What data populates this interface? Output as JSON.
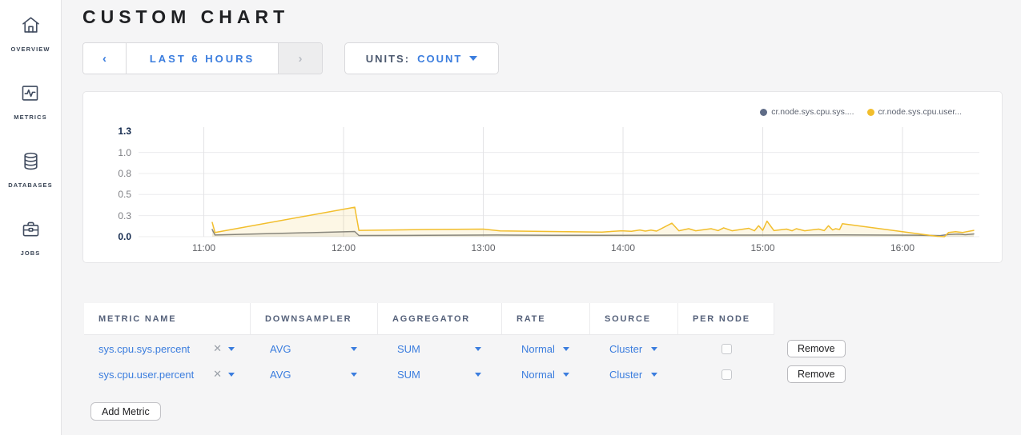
{
  "colors": {
    "accent_blue": "#3b7dde",
    "slate_text": "#55617a",
    "page_bg": "#f5f5f6",
    "panel_bg": "#ffffff",
    "series_sys": "#5f6c87",
    "series_user": "#f2be2c"
  },
  "sidebar": {
    "items": [
      {
        "label": "OVERVIEW",
        "icon": "home"
      },
      {
        "label": "METRICS",
        "icon": "metrics-graph"
      },
      {
        "label": "DATABASES",
        "icon": "database"
      },
      {
        "label": "JOBS",
        "icon": "briefcase"
      }
    ]
  },
  "header": {
    "title": "CUSTOM CHART"
  },
  "toolbar": {
    "time_range": {
      "prev_icon": "‹",
      "label": "LAST 6 HOURS",
      "next_icon": "›"
    },
    "units": {
      "label": "UNITS:",
      "value": "COUNT"
    }
  },
  "chart_data": {
    "type": "line",
    "title": "",
    "xlabel": "",
    "ylabel": "",
    "x_unit": "time of day (hours)",
    "xlim": [
      10.55,
      16.55
    ],
    "ylim": [
      0,
      1.3
    ],
    "grid": true,
    "legend_position": "top-right",
    "xticks": [
      {
        "v": 11,
        "label": "11:00"
      },
      {
        "v": 12,
        "label": "12:00"
      },
      {
        "v": 13,
        "label": "13:00"
      },
      {
        "v": 14,
        "label": "14:00"
      },
      {
        "v": 15,
        "label": "15:00"
      },
      {
        "v": 16,
        "label": "16:00"
      }
    ],
    "yticks": [
      {
        "v": 0,
        "label": "0.0",
        "bold": true,
        "line": true
      },
      {
        "v": 0.25,
        "label": "0.3",
        "bold": false,
        "line": true
      },
      {
        "v": 0.5,
        "label": "0.5",
        "bold": false,
        "line": true
      },
      {
        "v": 0.75,
        "label": "0.8",
        "bold": false,
        "line": true
      },
      {
        "v": 1.0,
        "label": "1.0",
        "bold": false,
        "line": true
      },
      {
        "v": 1.25,
        "label": "1.3",
        "bold": true,
        "line": false
      }
    ],
    "series": [
      {
        "name": "cr.node.sys.cpu.sys....",
        "color": "#5f6c87",
        "line_color": "#7a7f88",
        "fill": "rgba(120,126,138,0.10)",
        "points": [
          [
            11.06,
            0.085
          ],
          [
            11.08,
            0.02
          ],
          [
            12.08,
            0.062
          ],
          [
            12.11,
            0.014
          ],
          [
            12.6,
            0.016
          ],
          [
            13.1,
            0.02
          ],
          [
            13.5,
            0.017
          ],
          [
            14.0,
            0.017
          ],
          [
            14.5,
            0.019
          ],
          [
            15.0,
            0.019
          ],
          [
            15.57,
            0.021
          ],
          [
            16.1,
            0.018
          ],
          [
            16.27,
            0.013
          ],
          [
            16.33,
            0.026
          ],
          [
            16.4,
            0.03
          ],
          [
            16.45,
            0.024
          ],
          [
            16.51,
            0.032
          ]
        ]
      },
      {
        "name": "cr.node.sys.cpu.user...",
        "color": "#f2be2c",
        "line_color": "#f2be2c",
        "fill": "rgba(242,190,44,0.12)",
        "points": [
          [
            11.06,
            0.17
          ],
          [
            11.08,
            0.05
          ],
          [
            12.08,
            0.35
          ],
          [
            12.11,
            0.075
          ],
          [
            12.6,
            0.085
          ],
          [
            13.0,
            0.09
          ],
          [
            13.12,
            0.068
          ],
          [
            13.85,
            0.055
          ],
          [
            13.99,
            0.07
          ],
          [
            14.06,
            0.065
          ],
          [
            14.12,
            0.08
          ],
          [
            14.16,
            0.066
          ],
          [
            14.2,
            0.078
          ],
          [
            14.24,
            0.066
          ],
          [
            14.35,
            0.16
          ],
          [
            14.4,
            0.07
          ],
          [
            14.47,
            0.095
          ],
          [
            14.52,
            0.07
          ],
          [
            14.63,
            0.095
          ],
          [
            14.68,
            0.072
          ],
          [
            14.72,
            0.105
          ],
          [
            14.78,
            0.07
          ],
          [
            14.9,
            0.1
          ],
          [
            14.94,
            0.07
          ],
          [
            14.97,
            0.13
          ],
          [
            15.0,
            0.075
          ],
          [
            15.03,
            0.185
          ],
          [
            15.08,
            0.072
          ],
          [
            15.17,
            0.09
          ],
          [
            15.21,
            0.07
          ],
          [
            15.24,
            0.095
          ],
          [
            15.3,
            0.07
          ],
          [
            15.4,
            0.09
          ],
          [
            15.44,
            0.072
          ],
          [
            15.47,
            0.13
          ],
          [
            15.5,
            0.08
          ],
          [
            15.52,
            0.095
          ],
          [
            15.55,
            0.085
          ],
          [
            15.57,
            0.155
          ],
          [
            16.25,
            0.005
          ],
          [
            16.3,
            0.0
          ],
          [
            16.33,
            0.05
          ],
          [
            16.38,
            0.06
          ],
          [
            16.43,
            0.05
          ],
          [
            16.51,
            0.075
          ]
        ]
      }
    ]
  },
  "table": {
    "columns": [
      "METRIC NAME",
      "DOWNSAMPLER",
      "AGGREGATOR",
      "RATE",
      "SOURCE",
      "PER NODE"
    ],
    "rows": [
      {
        "metric": "sys.cpu.sys.percent",
        "remove_icon": "✕",
        "downsampler": "AVG",
        "aggregator": "SUM",
        "rate": "Normal",
        "source": "Cluster",
        "per_node_checked": false,
        "remove_label": "Remove"
      },
      {
        "metric": "sys.cpu.user.percent",
        "remove_icon": "✕",
        "downsampler": "AVG",
        "aggregator": "SUM",
        "rate": "Normal",
        "source": "Cluster",
        "per_node_checked": false,
        "remove_label": "Remove"
      }
    ],
    "add_metric_label": "Add Metric"
  }
}
